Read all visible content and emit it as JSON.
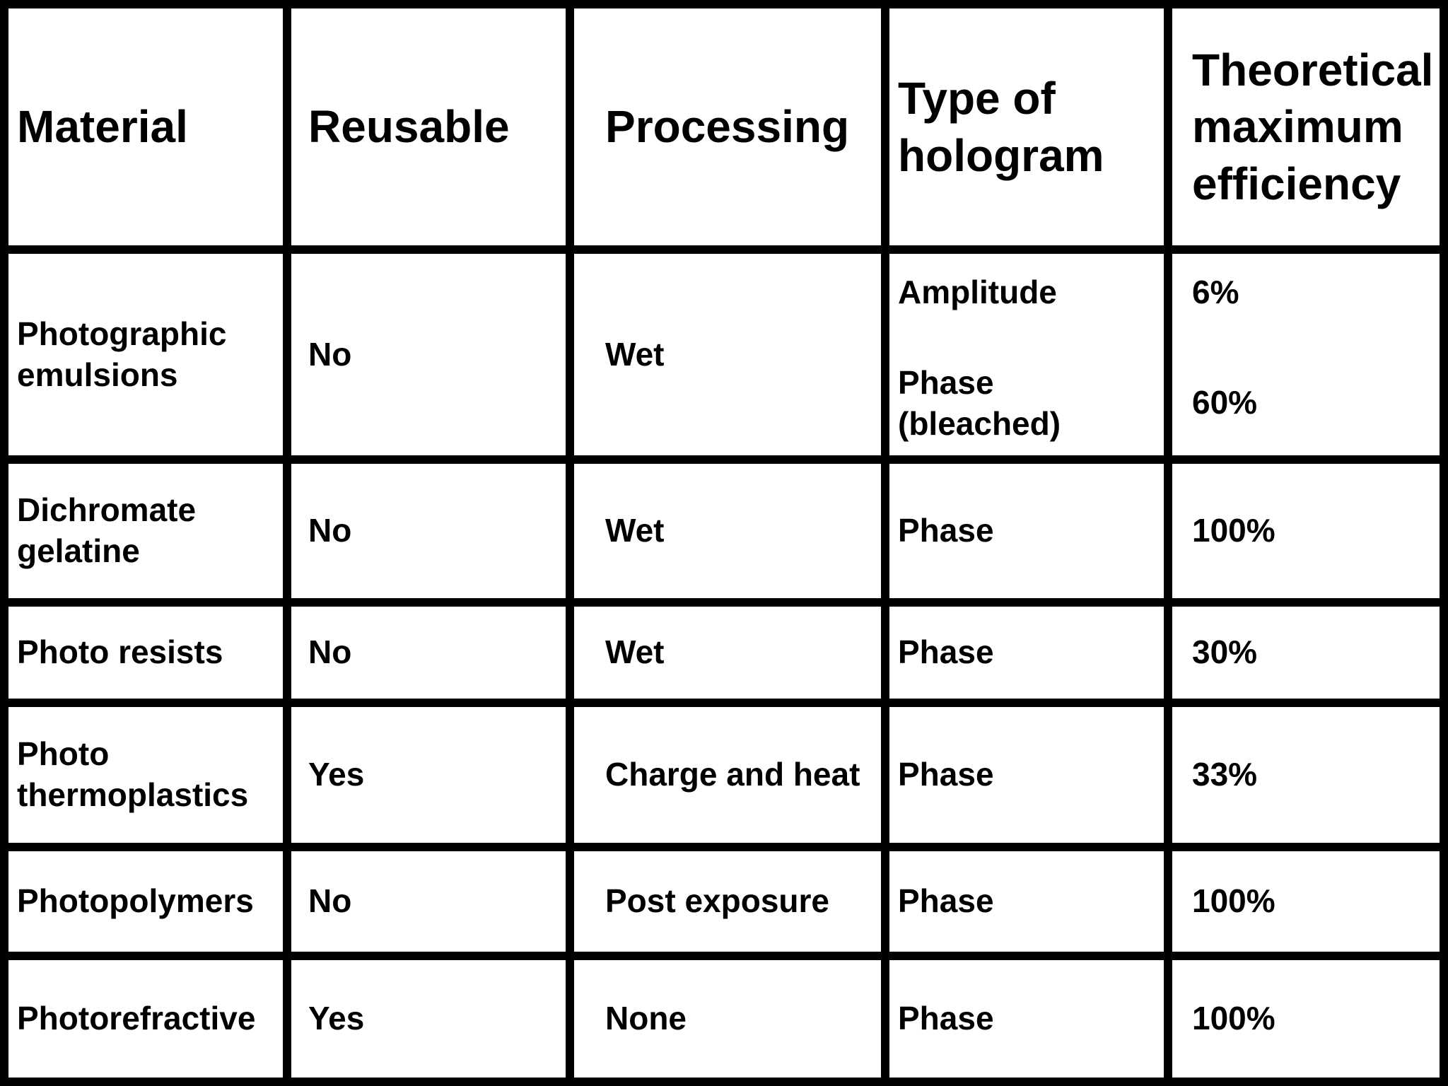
{
  "table": {
    "headers": {
      "material": "Material",
      "reusable": "Reusable",
      "processing": "Processing",
      "type_of_hologram": "Type of hologram",
      "efficiency": "Theoretical maximum efficiency"
    },
    "rows": [
      {
        "material": "Photographic emulsions",
        "reusable": "No",
        "processing": "Wet",
        "hologram": [
          "Amplitude",
          "Phase\n(bleached)"
        ],
        "efficiency": [
          "6%",
          "60%"
        ]
      },
      {
        "material": "Dichromate gelatine",
        "reusable": "No",
        "processing": "Wet",
        "hologram": "Phase",
        "efficiency": "100%"
      },
      {
        "material": "Photo resists",
        "reusable": "No",
        "processing": "Wet",
        "hologram": "Phase",
        "efficiency": "30%"
      },
      {
        "material": "Photo thermoplastics",
        "reusable": "Yes",
        "processing": "Charge and heat",
        "hologram": "Phase",
        "efficiency": "33%"
      },
      {
        "material": "Photopolymers",
        "reusable": "No",
        "processing": "Post exposure",
        "hologram": "Phase",
        "efficiency": "100%"
      },
      {
        "material": "Photorefractive",
        "reusable": "Yes",
        "processing": "None",
        "hologram": "Phase",
        "efficiency": "100%"
      }
    ]
  },
  "colors": {
    "background": "#ffffff",
    "grid_lines": "#000000",
    "text": "#000000"
  },
  "chart_data": {
    "type": "table",
    "title": "",
    "columns": [
      "Material",
      "Reusable",
      "Processing",
      "Type of hologram",
      "Theoretical maximum efficiency"
    ],
    "rows": [
      [
        "Photographic emulsions",
        "No",
        "Wet",
        "Amplitude / Phase (bleached)",
        "6% / 60%"
      ],
      [
        "Dichromate gelatine",
        "No",
        "Wet",
        "Phase",
        "100%"
      ],
      [
        "Photo resists",
        "No",
        "Wet",
        "Phase",
        "30%"
      ],
      [
        "Photo thermoplastics",
        "Yes",
        "Charge and heat",
        "Phase",
        "33%"
      ],
      [
        "Photopolymers",
        "No",
        "Post exposure",
        "Phase",
        "100%"
      ],
      [
        "Photorefractive",
        "Yes",
        "None",
        "Phase",
        "100%"
      ]
    ]
  }
}
